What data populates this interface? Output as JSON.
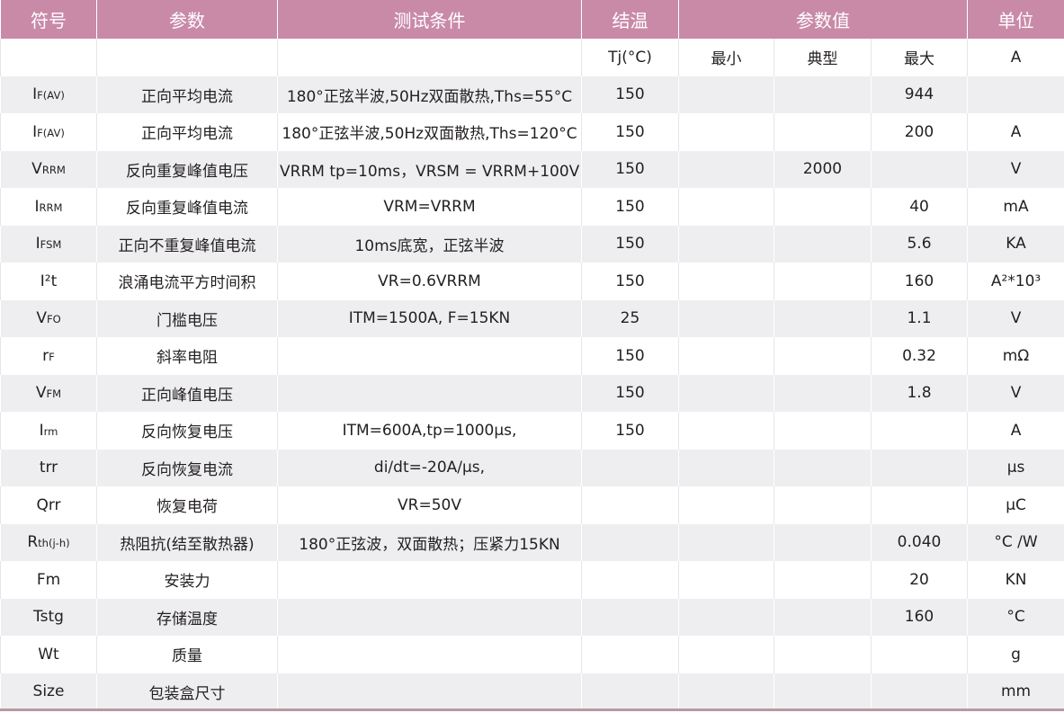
{
  "header": {
    "symbol": "符号",
    "parameter": "参数",
    "condition": "测试条件",
    "tj": "结温",
    "values": "参数值",
    "unit": "单位"
  },
  "subheader": {
    "tj": "Tj(°C)",
    "min": "最小",
    "typ": "典型",
    "max": "最大",
    "unit": "A"
  },
  "rows": [
    {
      "sym": "I",
      "sym_sub": "F(AV)",
      "param": "正向平均电流",
      "cond": "180°正弦半波,50Hz双面散热,Ths=55°C",
      "tj": "150",
      "min": "",
      "typ": "",
      "max": "944",
      "unit": ""
    },
    {
      "sym": "I",
      "sym_sub": "F(AV)",
      "param": "正向平均电流",
      "cond": "180°正弦半波,50Hz双面散热,Ths=120°C",
      "tj": "150",
      "min": "",
      "typ": "",
      "max": "200",
      "unit": "A"
    },
    {
      "sym": "V",
      "sym_sub": "RRM",
      "param": "反向重复峰值电压",
      "cond": "VRRM tp=10ms，VRSM = VRRM+100V",
      "tj": "150",
      "min": "",
      "typ": "2000",
      "max": "",
      "unit": "V"
    },
    {
      "sym": "I",
      "sym_sub": "RRM",
      "param": "反向重复峰值电流",
      "cond": "VRM=VRRM",
      "tj": "150",
      "min": "",
      "typ": "",
      "max": "40",
      "unit": "mA"
    },
    {
      "sym": "I",
      "sym_sub": "FSM",
      "param": "正向不重复峰值电流",
      "cond": "10ms底宽，正弦半波",
      "tj": "150",
      "min": "",
      "typ": "",
      "max": "5.6",
      "unit": "KA"
    },
    {
      "sym": "I²t",
      "sym_sub": "",
      "param": "浪涌电流平方时间积",
      "cond": "VR=0.6VRRM",
      "tj": "150",
      "min": "",
      "typ": "",
      "max": "160",
      "unit": "A²*10³"
    },
    {
      "sym": "V",
      "sym_sub": "FO",
      "param": "门槛电压",
      "cond": "ITM=1500A, F=15KN",
      "tj": "25",
      "min": "",
      "typ": "",
      "max": "1.1",
      "unit": "V"
    },
    {
      "sym": "r",
      "sym_sub": "F",
      "param": "斜率电阻",
      "cond": "",
      "tj": "150",
      "min": "",
      "typ": "",
      "max": "0.32",
      "unit": "mΩ"
    },
    {
      "sym": "V",
      "sym_sub": "FM",
      "param": "正向峰值电压",
      "cond": "",
      "tj": "150",
      "min": "",
      "typ": "",
      "max": "1.8",
      "unit": "V"
    },
    {
      "sym": "I",
      "sym_sub": "rm",
      "param": "反向恢复电压",
      "cond": "ITM=600A,tp=1000μs,",
      "tj": "150",
      "min": "",
      "typ": "",
      "max": "",
      "unit": "A"
    },
    {
      "sym": "trr",
      "sym_sub": "",
      "param": "反向恢复电流",
      "cond": "di/dt=-20A/μs,",
      "tj": "",
      "min": "",
      "typ": "",
      "max": "",
      "unit": "μs"
    },
    {
      "sym": "Qrr",
      "sym_sub": "",
      "param": "恢复电荷",
      "cond": "VR=50V",
      "tj": "",
      "min": "",
      "typ": "",
      "max": "",
      "unit": "μC"
    },
    {
      "sym": "R",
      "sym_sub": "th(j-h)",
      "param": "热阻抗(结至散热器)",
      "cond": "180°正弦波，双面散热；压紧力15KN",
      "tj": "",
      "min": "",
      "typ": "",
      "max": "0.040",
      "unit": "°C /W"
    },
    {
      "sym": "Fm",
      "sym_sub": "",
      "param": "安装力",
      "cond": "",
      "tj": "",
      "min": "",
      "typ": "",
      "max": "20",
      "unit": "KN"
    },
    {
      "sym": "Tstg",
      "sym_sub": "",
      "param": "存储温度",
      "cond": "",
      "tj": "",
      "min": "",
      "typ": "",
      "max": "160",
      "unit": "°C"
    },
    {
      "sym": "Wt",
      "sym_sub": "",
      "param": "质量",
      "cond": "",
      "tj": "",
      "min": "",
      "typ": "",
      "max": "",
      "unit": "g"
    },
    {
      "sym": "Size",
      "sym_sub": "",
      "param": "包装盒尺寸",
      "cond": "",
      "tj": "",
      "min": "",
      "typ": "",
      "max": "",
      "unit": "mm"
    }
  ],
  "colors": {
    "header_bg": "#c98aa8",
    "header_text": "#ffffff",
    "row_alt_bg": "#eeeef0",
    "text": "#231f20"
  }
}
